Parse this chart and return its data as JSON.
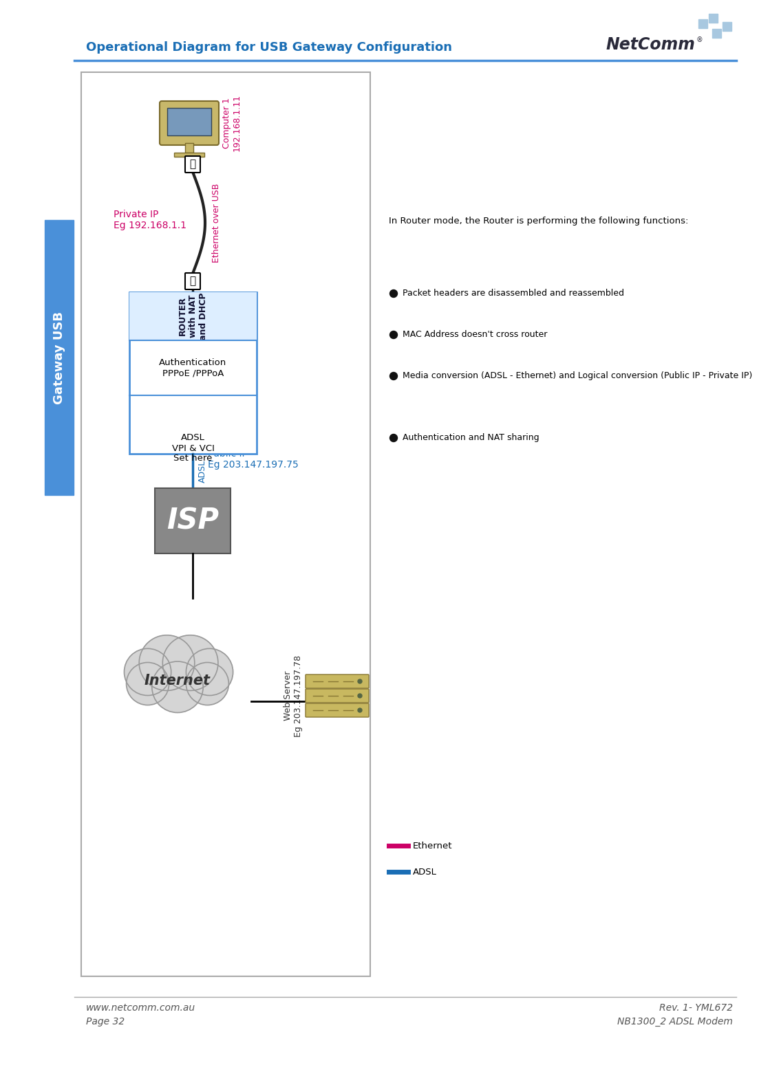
{
  "title": "Operational Diagram for USB Gateway Configuration",
  "title_color": "#1a6eb5",
  "background_color": "#ffffff",
  "page_url": "www.netcomm.com.au",
  "page_num": "Page 32",
  "rev": "Rev. 1- YML672",
  "model": "NB1300_2 ADSL Modem",
  "sidebar_text": "Gateway USB",
  "sidebar_bg": "#4a90d9",
  "router_box_color": "#4a90d9",
  "router_text": "ROUTER\nwith NAT\nand DHCP",
  "auth_text": "Authentication\nPPPoE /PPPoA",
  "adsl_text": "ADSL\nVPI & VCI\nSet here",
  "isp_text": "ISP",
  "internet_text": "Internet",
  "computer_label": "Computer 1\n192.168.1.11",
  "private_ip": "Private IP\nEg 192.168.1.1",
  "eth_over_usb": "Ethernet over USB",
  "adsl_label": "ADSL",
  "public_ip": "Public IP\nEg 203.147.197.75",
  "webserver_label": "Web Server\nEg 203.147.197.78",
  "bullet_intro": "In Router mode, the Router is performing the following functions:",
  "bullet_points": [
    "Packet headers are disassembled and reassembled",
    "MAC Address doesn't cross router",
    "Media conversion (ADSL - Ethernet) and Logical conversion (Public IP - Private IP)",
    "Authentication and NAT sharing"
  ],
  "legend_ethernet": "Ethernet",
  "legend_adsl": "ADSL",
  "eth_color": "#cc0066",
  "adsl_color": "#1a6eb5",
  "purple_text_color": "#cc0066",
  "blue_text_color": "#1a6eb5",
  "dark_text": "#333333"
}
